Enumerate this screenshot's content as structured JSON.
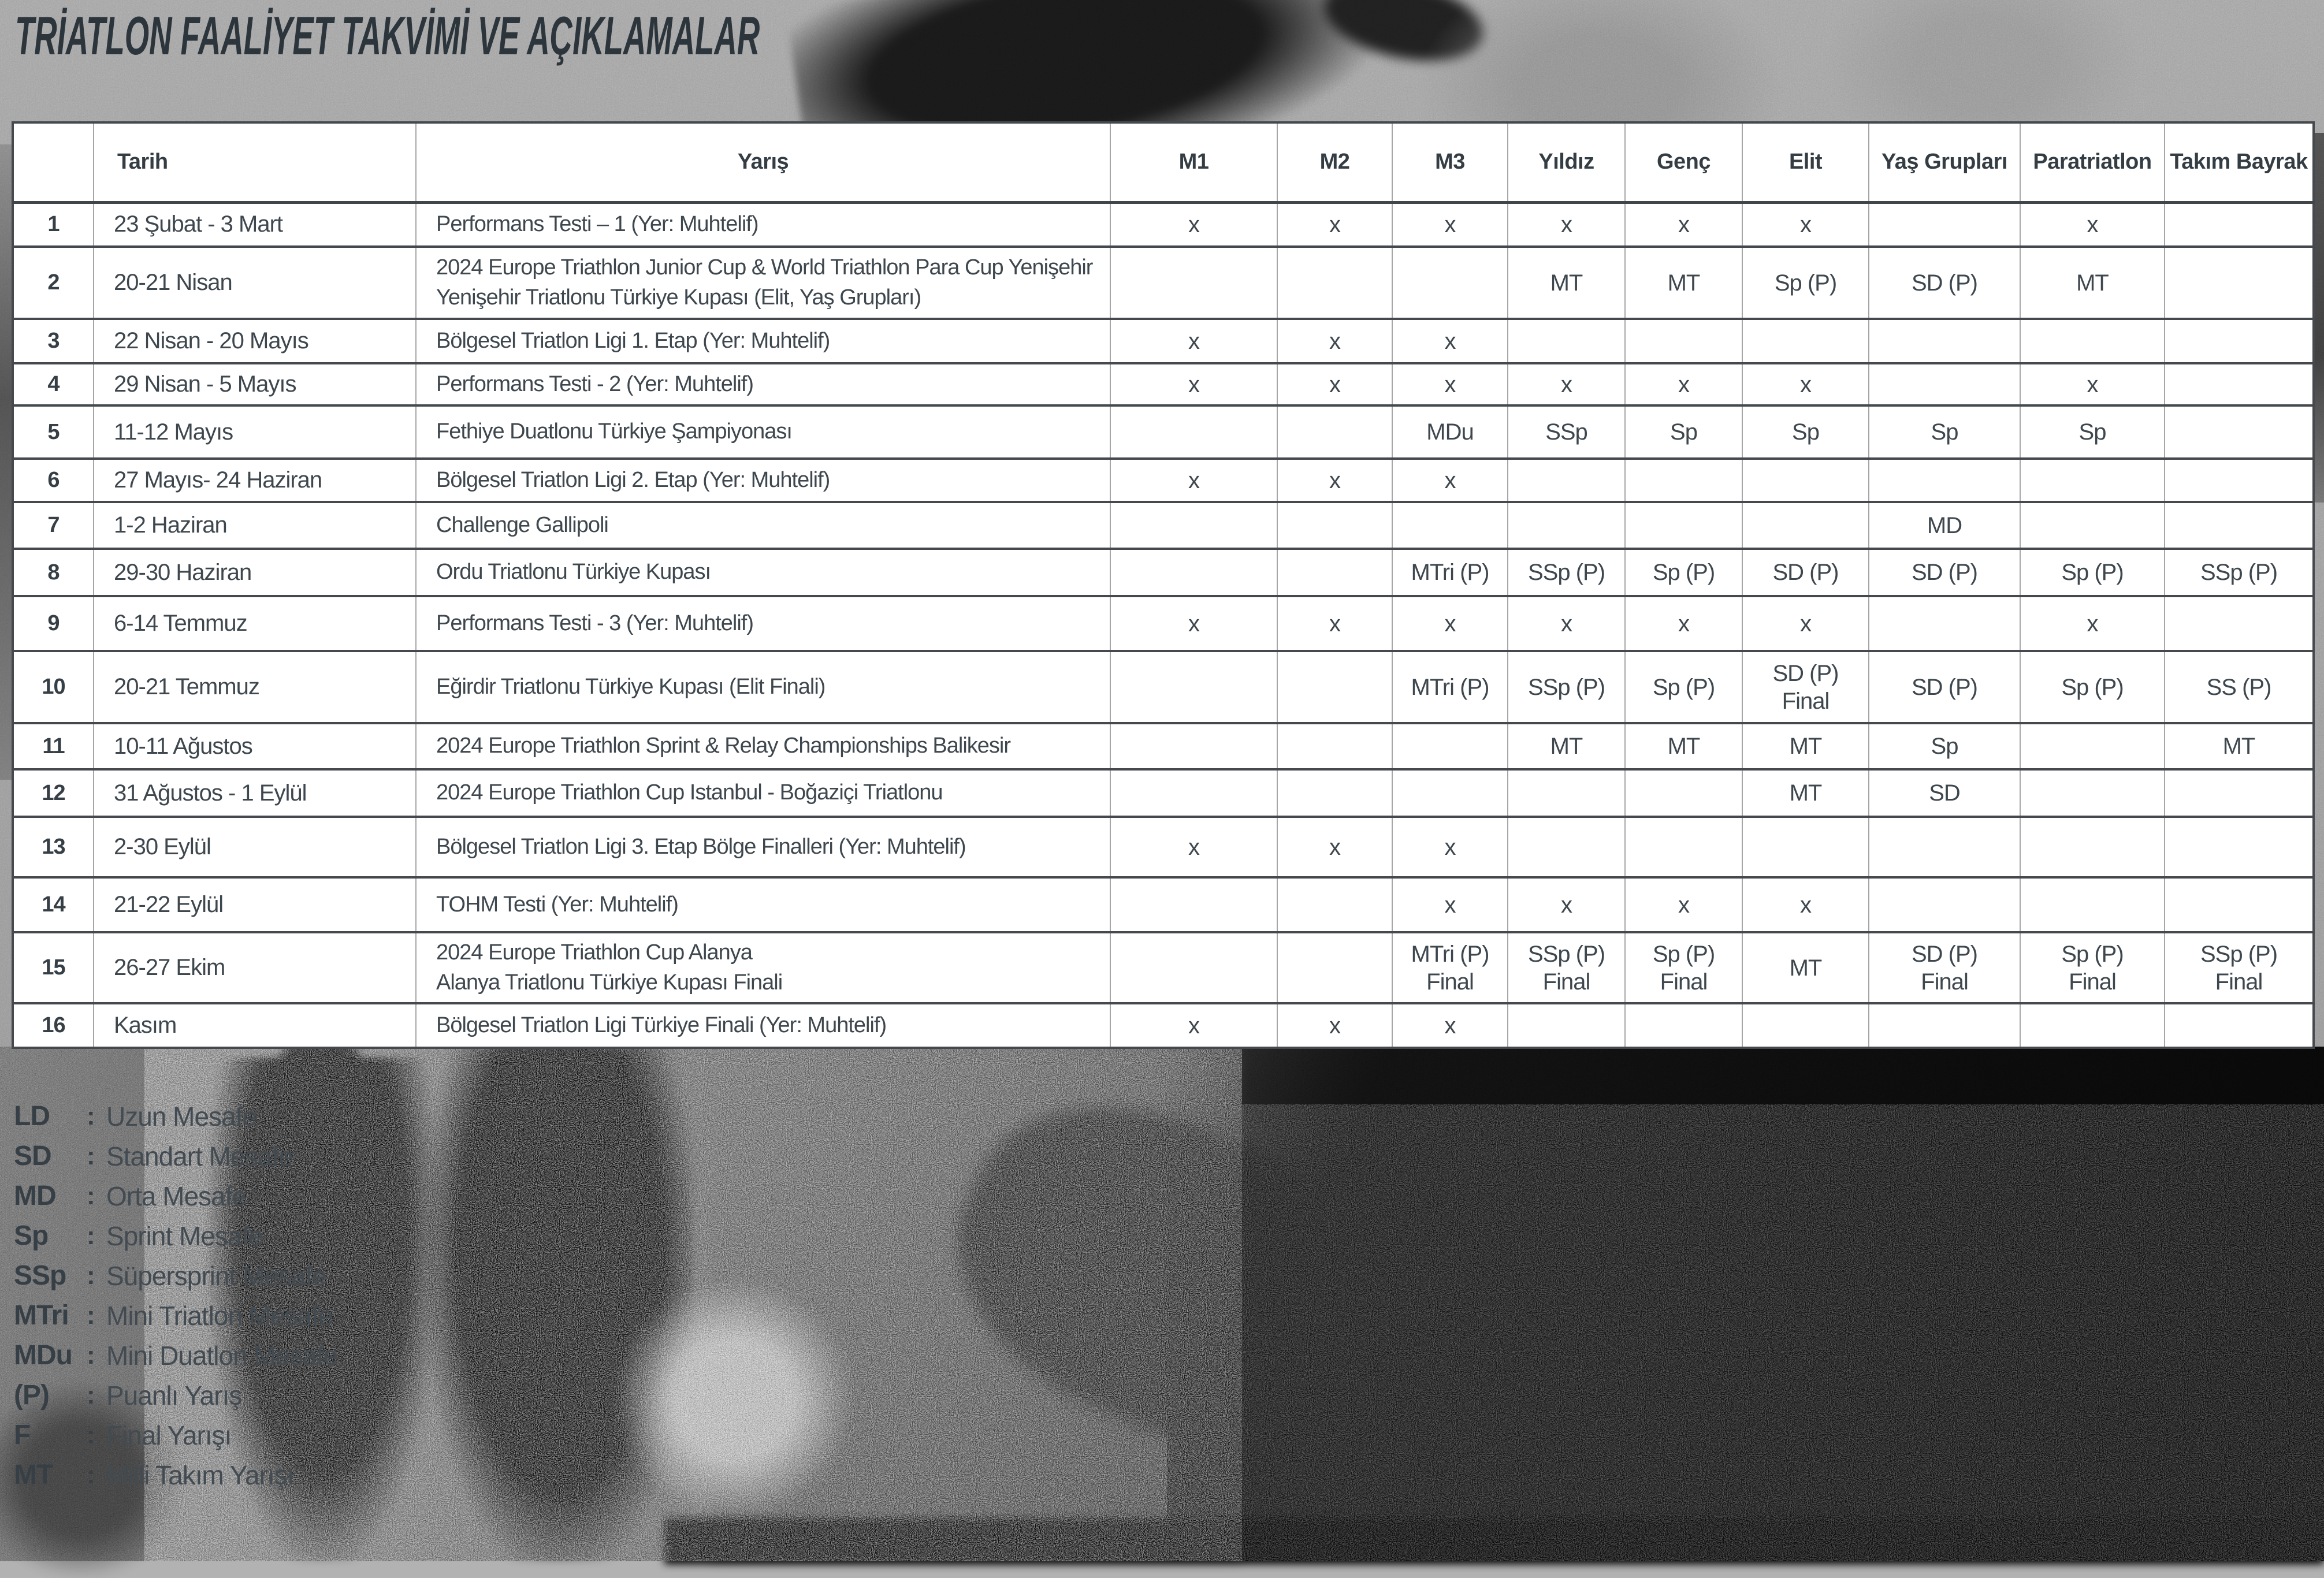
{
  "title": "TRİATLON FAALİYET TAKVİMİ VE AÇIKLAMALAR",
  "table": {
    "headers": [
      "",
      "Tarih",
      "Yarış",
      "M1",
      "M2",
      "M3",
      "Yıldız",
      "Genç",
      "Elit",
      "Yaş Grupları",
      "Paratriatlon",
      "Takım Bayrak"
    ],
    "rows": [
      [
        "1",
        "23 Şubat - 3 Mart",
        "Performans Testi – 1 (Yer: Muhtelif)",
        "x",
        "x",
        "x",
        "x",
        "x",
        "x",
        "",
        "x",
        ""
      ],
      [
        "2",
        "20-21 Nisan",
        "2024 Europe Triathlon Junior Cup & World Triathlon Para Cup Yenişehir\nYenişehir Triatlonu Türkiye Kupası (Elit, Yaş Grupları)",
        "",
        "",
        "",
        "MT",
        "MT",
        "Sp (P)",
        "SD (P)",
        "MT",
        ""
      ],
      [
        "3",
        "22 Nisan - 20 Mayıs",
        "Bölgesel Triatlon Ligi 1. Etap (Yer: Muhtelif)",
        "x",
        "x",
        "x",
        "",
        "",
        "",
        "",
        "",
        ""
      ],
      [
        "4",
        "29 Nisan - 5 Mayıs",
        "Performans Testi - 2 (Yer: Muhtelif)",
        "x",
        "x",
        "x",
        "x",
        "x",
        "x",
        "",
        "x",
        ""
      ],
      [
        "5",
        "11-12 Mayıs",
        "Fethiye Duatlonu Türkiye Şampiyonası",
        "",
        "",
        "MDu",
        "SSp",
        "Sp",
        "Sp",
        "Sp",
        "Sp",
        ""
      ],
      [
        "6",
        "27 Mayıs- 24 Haziran",
        "Bölgesel Triatlon Ligi 2. Etap (Yer: Muhtelif)",
        "x",
        "x",
        "x",
        "",
        "",
        "",
        "",
        "",
        ""
      ],
      [
        "7",
        "1-2 Haziran",
        "Challenge Gallipoli",
        "",
        "",
        "",
        "",
        "",
        "",
        "MD",
        "",
        ""
      ],
      [
        "8",
        "29-30 Haziran",
        "Ordu Triatlonu Türkiye Kupası",
        "",
        "",
        "MTri (P)",
        "SSp (P)",
        "Sp (P)",
        "SD (P)",
        "SD (P)",
        "Sp (P)",
        "SSp (P)"
      ],
      [
        "9",
        "6-14 Temmuz",
        "Performans Testi - 3 (Yer: Muhtelif)",
        "x",
        "x",
        "x",
        "x",
        "x",
        "x",
        "",
        "x",
        ""
      ],
      [
        "10",
        "20-21 Temmuz",
        "Eğirdir Triatlonu Türkiye Kupası (Elit Finali)",
        "",
        "",
        "MTri (P)",
        "SSp (P)",
        "Sp (P)",
        "SD (P)\nFinal",
        "SD (P)",
        "Sp (P)",
        "SS (P)"
      ],
      [
        "11",
        "10-11 Ağustos",
        "2024 Europe Triathlon Sprint & Relay Championships Balikesir",
        "",
        "",
        "",
        "MT",
        "MT",
        "MT",
        "Sp",
        "",
        "MT"
      ],
      [
        "12",
        "31 Ağustos - 1 Eylül",
        "2024 Europe Triathlon Cup Istanbul - Boğaziçi Triatlonu",
        "",
        "",
        "",
        "",
        "",
        "MT",
        "SD",
        "",
        ""
      ],
      [
        "13",
        "2-30 Eylül",
        "Bölgesel Triatlon Ligi 3. Etap Bölge Finalleri (Yer: Muhtelif)",
        "x",
        "x",
        "x",
        "",
        "",
        "",
        "",
        "",
        ""
      ],
      [
        "14",
        "21-22 Eylül",
        "TOHM Testi (Yer: Muhtelif)",
        "",
        "",
        "x",
        "x",
        "x",
        "x",
        "",
        "",
        ""
      ],
      [
        "15",
        "26-27 Ekim",
        "2024 Europe Triathlon Cup Alanya\nAlanya Triatlonu Türkiye Kupası Finali",
        "",
        "",
        "MTri (P)\nFinal",
        "SSp (P)\nFinal",
        "Sp (P)\nFinal",
        "MT",
        "SD (P)\nFinal",
        "Sp (P)\nFinal",
        "SSp (P)\nFinal"
      ],
      [
        "16",
        "Kasım",
        "Bölgesel Triatlon Ligi Türkiye Finali (Yer: Muhtelif)",
        "x",
        "x",
        "x",
        "",
        "",
        "",
        "",
        "",
        ""
      ]
    ]
  },
  "legend": {
    "colon": ":",
    "items": [
      {
        "abbr": "LD",
        "desc": "Uzun Mesafe"
      },
      {
        "abbr": "SD",
        "desc": "Standart Mesafe"
      },
      {
        "abbr": "MD",
        "desc": "Orta Mesafe"
      },
      {
        "abbr": "Sp",
        "desc": "Sprint Mesafe"
      },
      {
        "abbr": "SSp",
        "desc": "Süpersprint Mesafe"
      },
      {
        "abbr": "MTri",
        "desc": "Mini Triatlon Mesafe"
      },
      {
        "abbr": "MDu",
        "desc": "Mini Duatlon Mesafe"
      },
      {
        "abbr": "(P)",
        "desc": "Puanlı Yarış"
      },
      {
        "abbr": "F",
        "desc": "Final Yarışı"
      },
      {
        "abbr": "MT",
        "desc": "Milli Takım Yarışı"
      }
    ]
  },
  "colors": {
    "title_text": "#2c353b",
    "cell_text": "#3e474e",
    "row_border": "#45494d",
    "column_border": "#a6a6a6",
    "background_light": "#b2b2b2",
    "photo_dark": "#0e0e0e"
  }
}
